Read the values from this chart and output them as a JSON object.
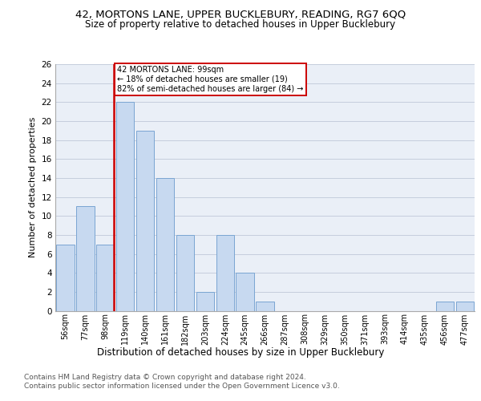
{
  "title1": "42, MORTONS LANE, UPPER BUCKLEBURY, READING, RG7 6QQ",
  "title2": "Size of property relative to detached houses in Upper Bucklebury",
  "xlabel": "Distribution of detached houses by size in Upper Bucklebury",
  "ylabel": "Number of detached properties",
  "footnote1": "Contains HM Land Registry data © Crown copyright and database right 2024.",
  "footnote2": "Contains public sector information licensed under the Open Government Licence v3.0.",
  "categories": [
    "56sqm",
    "77sqm",
    "98sqm",
    "119sqm",
    "140sqm",
    "161sqm",
    "182sqm",
    "203sqm",
    "224sqm",
    "245sqm",
    "266sqm",
    "287sqm",
    "308sqm",
    "329sqm",
    "350sqm",
    "371sqm",
    "393sqm",
    "414sqm",
    "435sqm",
    "456sqm",
    "477sqm"
  ],
  "values": [
    7,
    11,
    7,
    22,
    19,
    14,
    8,
    2,
    8,
    4,
    1,
    0,
    0,
    0,
    0,
    0,
    0,
    0,
    0,
    1,
    1
  ],
  "bar_color": "#c7d9f0",
  "bar_edgecolor": "#7aa5d2",
  "vline_x_index": 2,
  "vline_color": "#cc0000",
  "annotation_line1": "42 MORTONS LANE: 99sqm",
  "annotation_line2": "← 18% of detached houses are smaller (19)",
  "annotation_line3": "82% of semi-detached houses are larger (84) →",
  "annotation_edgecolor": "#cc0000",
  "ylim": [
    0,
    26
  ],
  "yticks": [
    0,
    2,
    4,
    6,
    8,
    10,
    12,
    14,
    16,
    18,
    20,
    22,
    24,
    26
  ],
  "grid_color": "#c0c8d8",
  "bg_color": "#eaeff7",
  "title1_fontsize": 9.5,
  "title2_fontsize": 8.5,
  "xlabel_fontsize": 8.5,
  "footnote_fontsize": 6.5,
  "ylabel_fontsize": 8
}
